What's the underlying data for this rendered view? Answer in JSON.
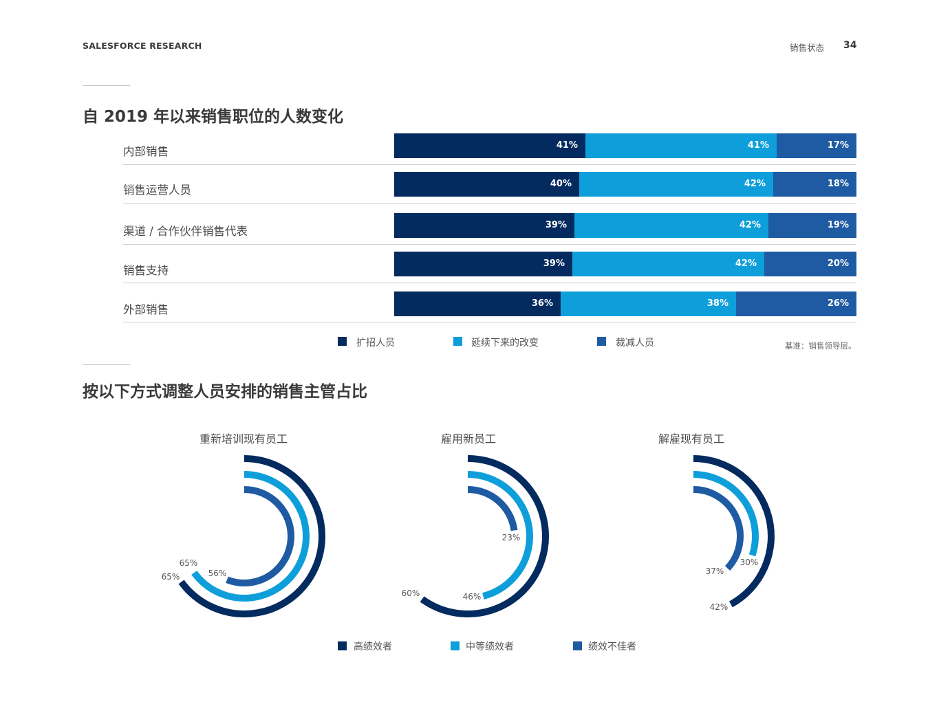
{
  "header": {
    "left": "SALESFORCE RESEARCH",
    "section": "销售状态",
    "page": "34"
  },
  "colors": {
    "expand": "#042b5f",
    "same": "#0e9fdb",
    "reduce": "#1f5ba3",
    "high": "#042b5f",
    "mid": "#0e9fdb",
    "low": "#1f5ba3"
  },
  "section1": {
    "title": "自 2019 年以来销售职位的人数变化",
    "legend": [
      "扩招人员",
      "延续下来的改变",
      "裁减人员"
    ],
    "note": "基准：销售领导层。"
  },
  "section2": {
    "title": "按以下方式调整人员安排的销售主管占比",
    "legend": [
      "高绩效者",
      "中等绩效者",
      "绩效不佳者"
    ]
  },
  "chart_data": [
    {
      "type": "bar",
      "title": "自 2019 年以来销售职位的人数变化",
      "stacked": true,
      "orientation": "horizontal",
      "categories": [
        "内部销售",
        "销售运营人员",
        "渠道 / 合作伙伴销售代表",
        "销售支持",
        "外部销售"
      ],
      "series": [
        {
          "name": "扩招人员",
          "values": [
            41,
            40,
            39,
            39,
            36
          ],
          "labels": [
            "41%",
            "40%",
            "39%",
            "39%",
            "36%"
          ]
        },
        {
          "name": "延续下来的改变",
          "values": [
            41,
            42,
            42,
            42,
            38
          ],
          "labels": [
            "41%",
            "42%",
            "42%",
            "42%",
            "38%"
          ]
        },
        {
          "name": "裁减人员",
          "values": [
            17,
            18,
            19,
            20,
            26
          ],
          "labels": [
            "17%",
            "18%",
            "19%",
            "20%",
            "26%"
          ]
        }
      ]
    },
    {
      "type": "radial-bar",
      "title": "重新培训现有员工",
      "series": [
        {
          "name": "高绩效者",
          "value": 65,
          "label": "65%"
        },
        {
          "name": "中等绩效者",
          "value": 65,
          "label": "65%"
        },
        {
          "name": "绩效不佳者",
          "value": 56,
          "label": "56%"
        }
      ]
    },
    {
      "type": "radial-bar",
      "title": "雇用新员工",
      "series": [
        {
          "name": "高绩效者",
          "value": 60,
          "label": "60%"
        },
        {
          "name": "中等绩效者",
          "value": 46,
          "label": "46%"
        },
        {
          "name": "绩效不佳者",
          "value": 23,
          "label": "23%"
        }
      ]
    },
    {
      "type": "radial-bar",
      "title": "解雇现有员工",
      "series": [
        {
          "name": "高绩效者",
          "value": 42,
          "label": "42%"
        },
        {
          "name": "中等绩效者",
          "value": 30,
          "label": "30%"
        },
        {
          "name": "绩效不佳者",
          "value": 37,
          "label": "37%"
        }
      ]
    }
  ]
}
